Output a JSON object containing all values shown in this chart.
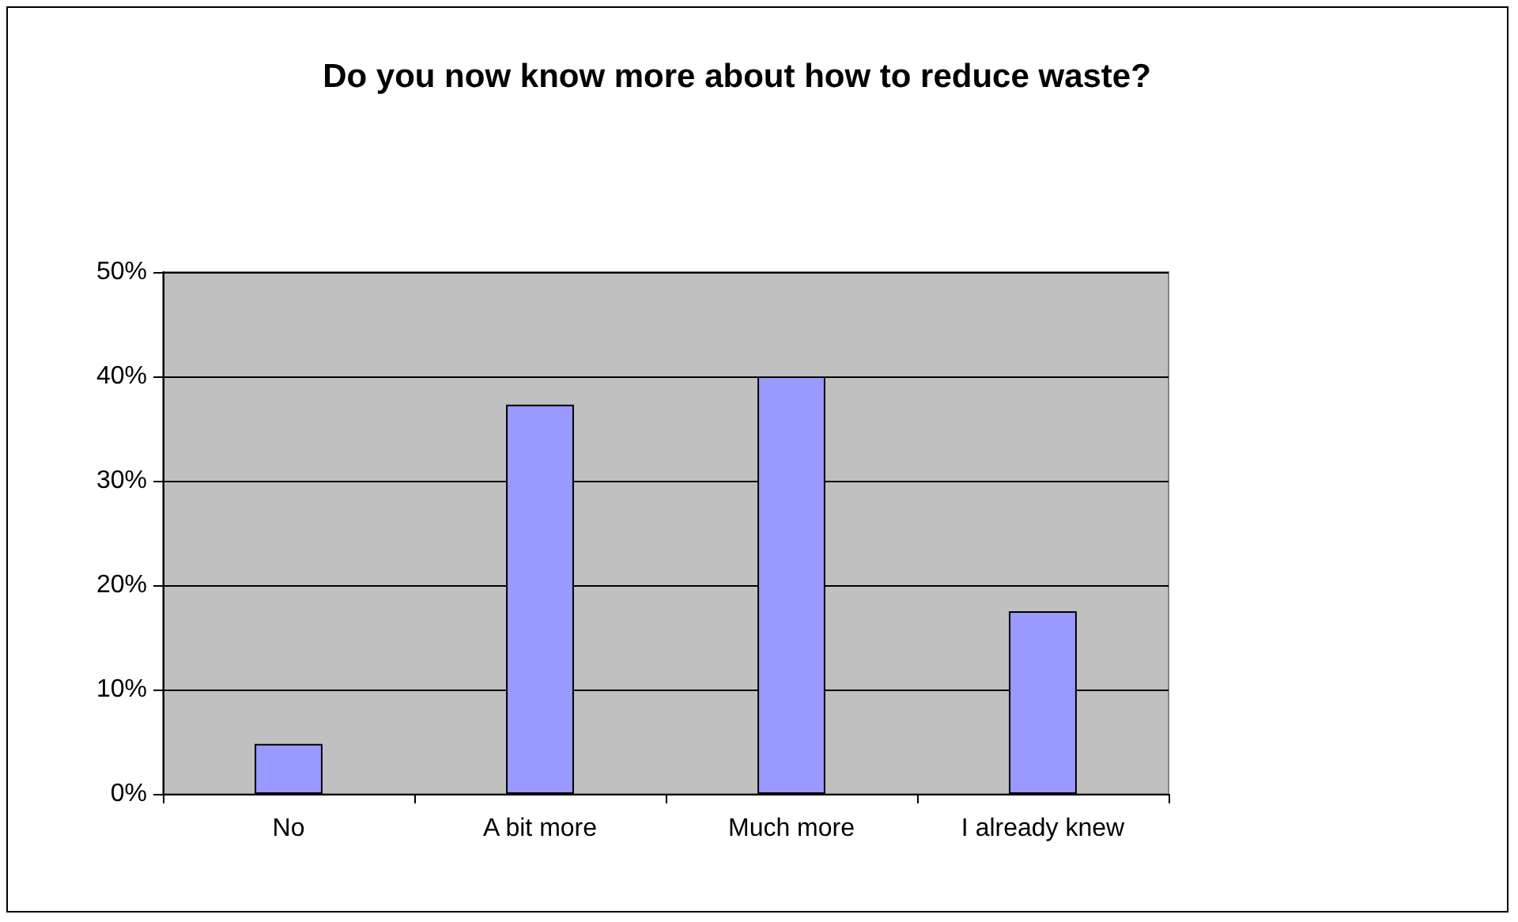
{
  "chart_data": {
    "type": "bar",
    "title": "Do you now know more about how to reduce waste?",
    "categories": [
      "No",
      "A bit more",
      "Much more",
      "I already knew"
    ],
    "values": [
      0.048,
      0.373,
      0.4,
      0.175
    ],
    "color": "#9999ff",
    "ylim": [
      0,
      0.5
    ],
    "yticks": [
      {
        "value": 0,
        "label": "0%"
      },
      {
        "value": 0.1,
        "label": "10%"
      },
      {
        "value": 0.2,
        "label": "20%"
      },
      {
        "value": 0.3,
        "label": "30%"
      },
      {
        "value": 0.4,
        "label": "40%"
      },
      {
        "value": 0.5,
        "label": "50%"
      }
    ],
    "grid": "y"
  }
}
